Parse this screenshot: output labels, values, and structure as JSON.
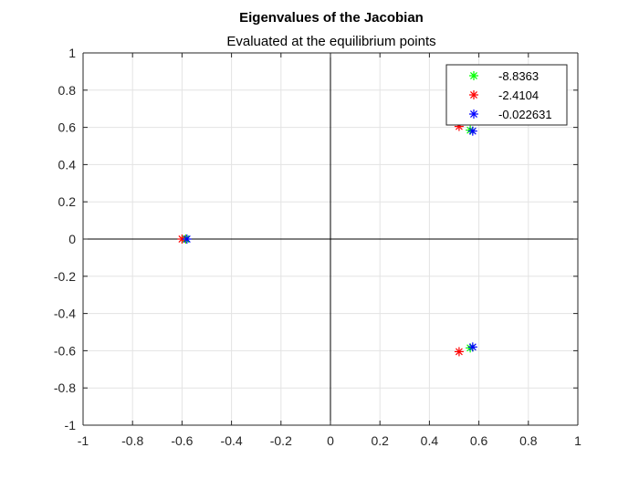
{
  "chart_data": {
    "type": "scatter",
    "title": "Eigenvalues of the Jacobian",
    "subtitle": "Evaluated at the equilibrium points",
    "xlabel": "",
    "ylabel": "",
    "xlim": [
      -1,
      1
    ],
    "ylim": [
      -1,
      1
    ],
    "xticks": [
      -1,
      -0.8,
      -0.6,
      -0.4,
      -0.2,
      0,
      0.2,
      0.4,
      0.6,
      0.8,
      1
    ],
    "yticks": [
      -1,
      -0.8,
      -0.6,
      -0.4,
      -0.2,
      0,
      0.2,
      0.4,
      0.6,
      0.8,
      1
    ],
    "xtick_labels": [
      "-1",
      "-0.8",
      "-0.6",
      "-0.4",
      "-0.2",
      "0",
      "0.2",
      "0.4",
      "0.6",
      "0.8",
      "1"
    ],
    "ytick_labels": [
      "-1",
      "-0.8",
      "-0.6",
      "-0.4",
      "-0.2",
      "0",
      "0.2",
      "0.4",
      "0.6",
      "0.8",
      "1"
    ],
    "grid": true,
    "axis_lines_through_origin": true,
    "legend_position": "top-right",
    "marker": "asterisk",
    "series": [
      {
        "name": "-8.8363",
        "color": "#00ff00",
        "points": [
          [
            -0.585,
            0.0
          ],
          [
            0.565,
            0.585
          ],
          [
            0.565,
            -0.585
          ]
        ]
      },
      {
        "name": "-2.4104",
        "color": "#ff0000",
        "points": [
          [
            -0.6,
            0.0
          ],
          [
            0.52,
            0.605
          ],
          [
            0.52,
            -0.605
          ]
        ]
      },
      {
        "name": "-0.022631",
        "color": "#0000ff",
        "points": [
          [
            -0.58,
            0.0
          ],
          [
            0.575,
            0.58
          ],
          [
            0.575,
            -0.58
          ]
        ]
      }
    ]
  }
}
